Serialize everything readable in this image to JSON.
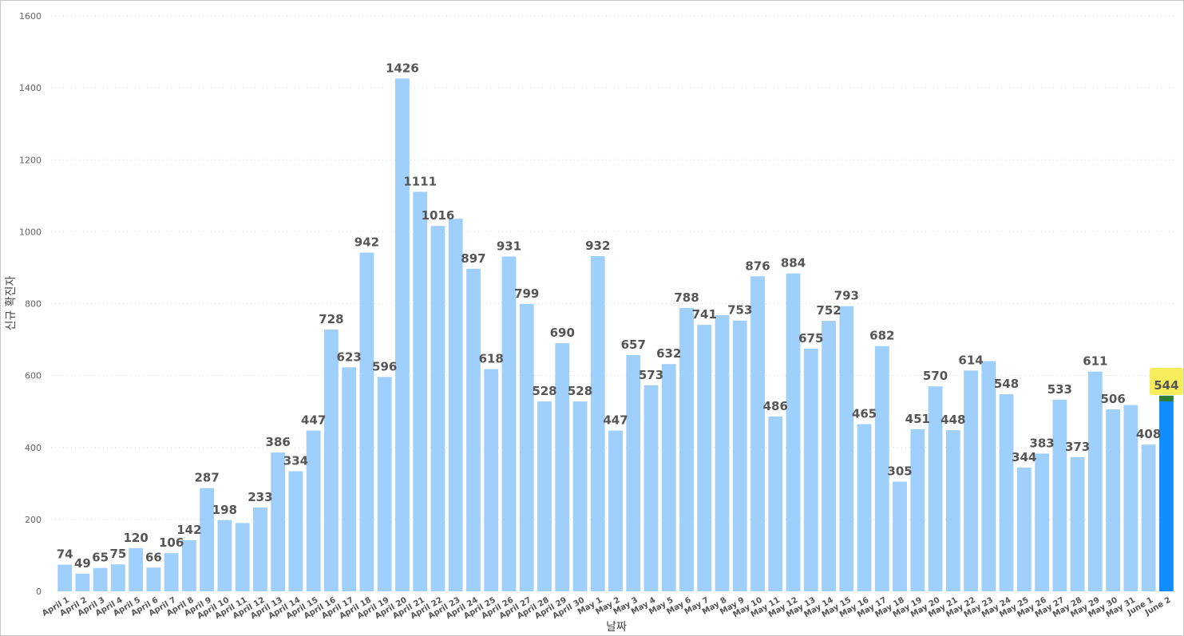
{
  "chart_data": {
    "type": "bar",
    "title": "",
    "xlabel": "날짜",
    "ylabel": "신규 확진자",
    "ylim": [
      0,
      1600
    ],
    "yticks": [
      0,
      200,
      400,
      600,
      800,
      1000,
      1200,
      1400,
      1600
    ],
    "grid": true,
    "legend": "none",
    "colors": {
      "bar": "#9fcffb",
      "highlight": "#118dff",
      "highlight_cap": "#2e7d32",
      "highlight_label_bg": "#f7ec5c"
    },
    "highlight_index": 62,
    "categories": [
      "April 1",
      "April 2",
      "April 3",
      "April 4",
      "April 5",
      "April 6",
      "April 7",
      "April 8",
      "April 9",
      "April 10",
      "April 11",
      "April 12",
      "April 13",
      "April 14",
      "April 15",
      "April 16",
      "April 17",
      "April 18",
      "April 19",
      "April 20",
      "April 21",
      "April 22",
      "April 23",
      "April 24",
      "April 25",
      "April 26",
      "April 27",
      "April 28",
      "April 29",
      "April 30",
      "May 1",
      "May 2",
      "May 3",
      "May 4",
      "May 5",
      "May 6",
      "May 7",
      "May 8",
      "May 9",
      "May 10",
      "May 11",
      "May 12",
      "May 13",
      "May 14",
      "May 15",
      "May 16",
      "May 17",
      "May 18",
      "May 19",
      "May 20",
      "May 21",
      "May 22",
      "May 23",
      "May 24",
      "May 25",
      "May 26",
      "May 27",
      "May 28",
      "May 29",
      "May 30",
      "May 31",
      "June 1",
      "June 2"
    ],
    "values": [
      74,
      49,
      65,
      75,
      120,
      66,
      106,
      142,
      287,
      198,
      190,
      233,
      386,
      334,
      447,
      728,
      623,
      942,
      596,
      1426,
      1111,
      1016,
      1036,
      897,
      618,
      931,
      799,
      528,
      690,
      528,
      932,
      447,
      657,
      573,
      632,
      788,
      741,
      768,
      753,
      876,
      486,
      884,
      675,
      752,
      793,
      465,
      682,
      305,
      451,
      570,
      448,
      614,
      640,
      548,
      344,
      383,
      533,
      373,
      611,
      506,
      518,
      408,
      544
    ],
    "labels": [
      "74",
      "49",
      "65",
      "75",
      "120",
      "66",
      "106",
      "142",
      "287",
      "198",
      "",
      "233",
      "386",
      "334",
      "447",
      "728",
      "623",
      "942",
      "596",
      "1426",
      "1111",
      "1016",
      "",
      "897",
      "618",
      "931",
      "799",
      "528",
      "690",
      "528",
      "932",
      "447",
      "657",
      "573",
      "632",
      "788",
      "741",
      "",
      "753",
      "876",
      "486",
      "884",
      "675",
      "752",
      "793",
      "465",
      "682",
      "305",
      "451",
      "570",
      "448",
      "614",
      "",
      "548",
      "344",
      "383",
      "533",
      "373",
      "611",
      "506",
      "",
      "408",
      "544"
    ]
  }
}
